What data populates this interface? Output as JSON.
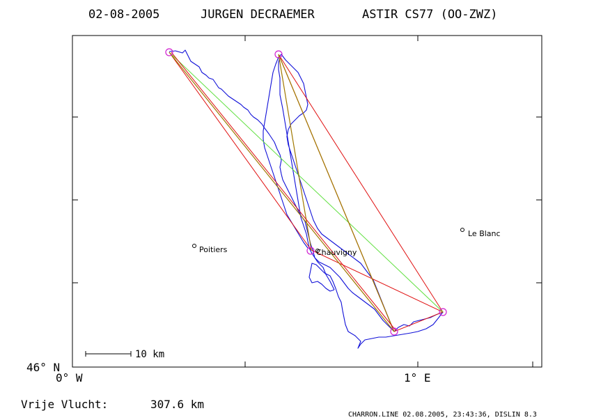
{
  "title": {
    "date": "02-08-2005",
    "pilot": "JURGEN DECRAEMER",
    "glider": "ASTIR CS77 (OO-ZWZ)"
  },
  "axes": {
    "lat_label": "46° N",
    "lon_west_label": "0° W",
    "lon_east_label": "1° E"
  },
  "cities": [
    {
      "name": "Poitiers"
    },
    {
      "name": "Chauvigny"
    },
    {
      "name": "Le Blanc"
    }
  ],
  "scale_bar": {
    "label": "10 km"
  },
  "distance": {
    "label": "Vrije Vlucht:",
    "value": "307.6 km"
  },
  "footer": "CHARRON.LINE 02.08.2005, 23:43:36, DISLIN 8.3",
  "colors": {
    "track": "#1010d8",
    "turnpoint": "#d020d0",
    "leg_red": "#e01010",
    "leg_green": "#60e040",
    "leg_olive": "#a07800"
  }
}
